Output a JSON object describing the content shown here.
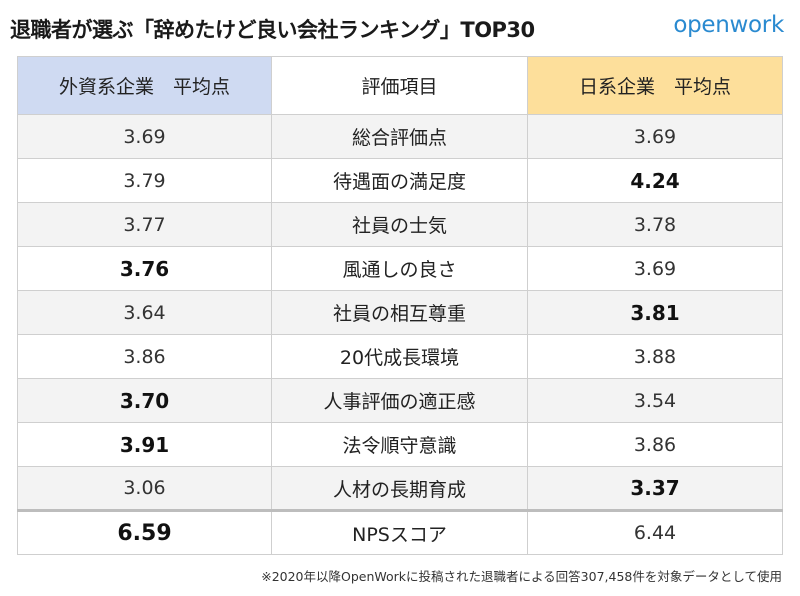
{
  "header": {
    "title": "退職者が選ぶ「辞めたけど良い会社ランキング」TOP30",
    "brand": "openwork"
  },
  "table": {
    "columns": {
      "foreign": "外資系企業　平均点",
      "items": "評価項目",
      "domestic": "日系企業　平均点"
    },
    "rows": [
      {
        "item": "総合評価点",
        "foreign": "3.69",
        "domestic": "3.69",
        "foreign_bold": false,
        "domestic_bold": false
      },
      {
        "item": "待遇面の満足度",
        "foreign": "3.79",
        "domestic": "4.24",
        "foreign_bold": false,
        "domestic_bold": true
      },
      {
        "item": "社員の士気",
        "foreign": "3.77",
        "domestic": "3.78",
        "foreign_bold": false,
        "domestic_bold": false
      },
      {
        "item": "風通しの良さ",
        "foreign": "3.76",
        "domestic": "3.69",
        "foreign_bold": true,
        "domestic_bold": false
      },
      {
        "item": "社員の相互尊重",
        "foreign": "3.64",
        "domestic": "3.81",
        "foreign_bold": false,
        "domestic_bold": true
      },
      {
        "item": "20代成長環境",
        "foreign": "3.86",
        "domestic": "3.88",
        "foreign_bold": false,
        "domestic_bold": false
      },
      {
        "item": "人事評価の適正感",
        "foreign": "3.70",
        "domestic": "3.54",
        "foreign_bold": true,
        "domestic_bold": false
      },
      {
        "item": "法令順守意識",
        "foreign": "3.91",
        "domestic": "3.86",
        "foreign_bold": true,
        "domestic_bold": false
      },
      {
        "item": "人材の長期育成",
        "foreign": "3.06",
        "domestic": "3.37",
        "foreign_bold": false,
        "domestic_bold": true
      }
    ],
    "nps": {
      "item": "NPSスコア",
      "foreign": "6.59",
      "domestic": "6.44",
      "foreign_bold": true,
      "domestic_bold": false
    }
  },
  "footnote": "※2020年以降OpenWorkに投稿された退職者による回答307,458件を対象データとして使用",
  "colors": {
    "foreign_header": "#cfdaf2",
    "domestic_header": "#fddf9b",
    "brand": "#2a8ad0"
  }
}
